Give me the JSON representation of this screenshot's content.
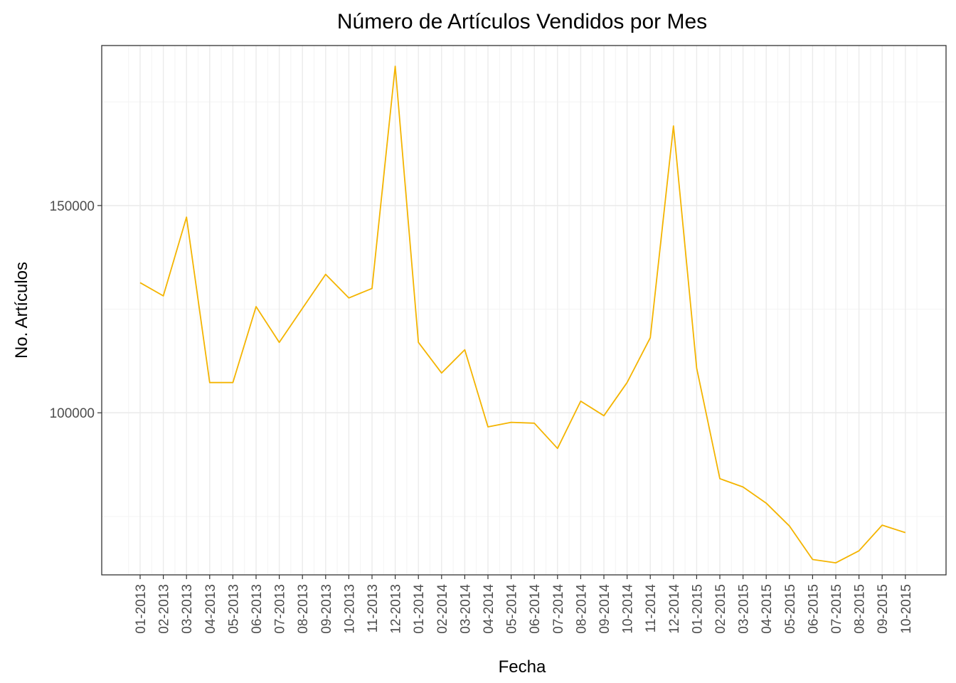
{
  "chart_data": {
    "type": "line",
    "title": "Número de Artículos Vendidos por Mes",
    "xlabel": "Fecha",
    "ylabel": "No. Artículos",
    "categories": [
      "01-2013",
      "02-2013",
      "03-2013",
      "04-2013",
      "05-2013",
      "06-2013",
      "07-2013",
      "08-2013",
      "09-2013",
      "10-2013",
      "11-2013",
      "12-2013",
      "01-2014",
      "02-2014",
      "03-2014",
      "04-2014",
      "05-2014",
      "06-2014",
      "07-2014",
      "08-2014",
      "09-2014",
      "10-2014",
      "11-2014",
      "12-2014",
      "01-2015",
      "02-2015",
      "03-2015",
      "04-2015",
      "05-2015",
      "06-2015",
      "07-2015",
      "08-2015",
      "09-2015",
      "10-2015"
    ],
    "y_ticks": [
      100000,
      150000
    ],
    "y_tick_labels": [
      "100000",
      "150000"
    ],
    "ylim": [
      60900,
      188600
    ],
    "grid": true,
    "series": [
      {
        "color": "#F4B400",
        "values": [
          131400,
          128200,
          147200,
          107300,
          107300,
          125600,
          117000,
          125200,
          133400,
          127700,
          130000,
          183600,
          117000,
          109600,
          115200,
          96600,
          97700,
          97500,
          91400,
          102800,
          99300,
          107300,
          118100,
          169200,
          110800,
          84100,
          82100,
          78200,
          72700,
          64600,
          63800,
          66700,
          72900,
          71100
        ]
      }
    ]
  },
  "colors": {
    "line": "#F4B400",
    "grid_major": "#ebebeb",
    "grid_minor": "#f4f4f4",
    "panel_border": "#333333"
  }
}
